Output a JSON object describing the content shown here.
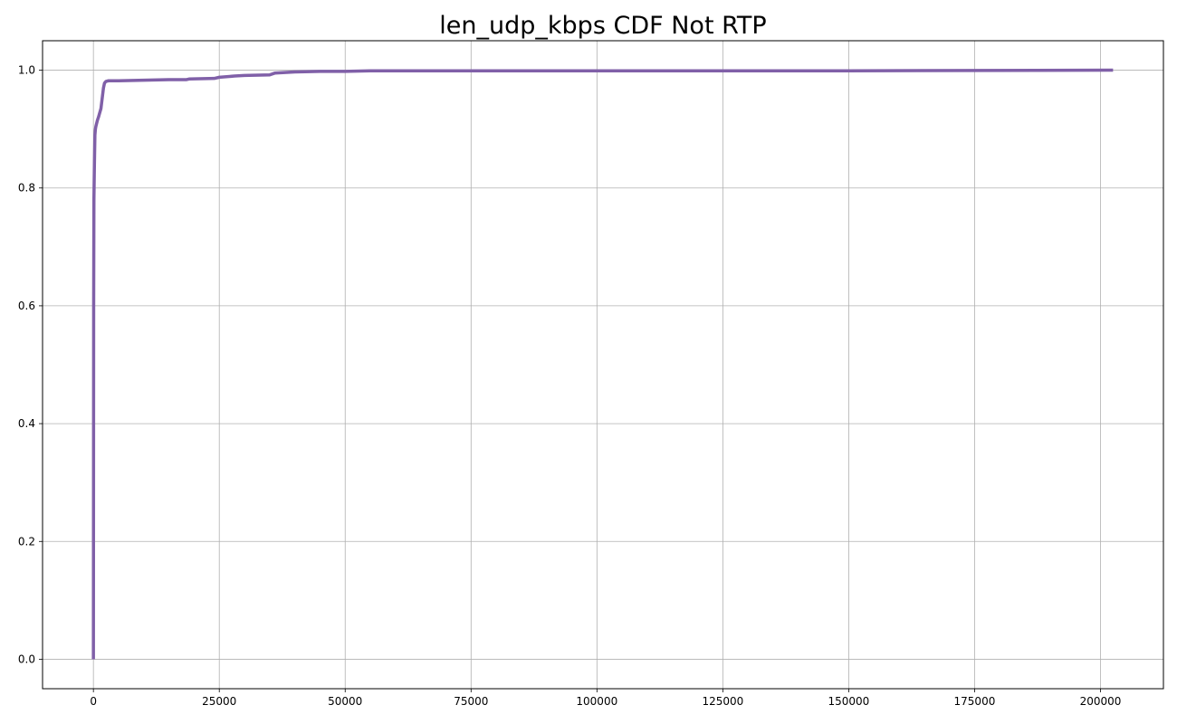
{
  "chart_data": {
    "type": "line",
    "title": "len_udp_kbps CDF Not RTP",
    "xlabel": "",
    "ylabel": "",
    "xlim": [
      -10100,
      212500
    ],
    "ylim": [
      -0.05,
      1.05
    ],
    "xticks": [
      0,
      25000,
      50000,
      75000,
      100000,
      125000,
      150000,
      175000,
      200000
    ],
    "yticks": [
      0.0,
      0.2,
      0.4,
      0.6,
      0.8,
      1.0
    ],
    "xtick_labels": [
      "0",
      "25000",
      "50000",
      "75000",
      "100000",
      "125000",
      "150000",
      "175000",
      "200000"
    ],
    "ytick_labels": [
      "0.0",
      "0.2",
      "0.4",
      "0.6",
      "0.8",
      "1.0"
    ],
    "grid": true,
    "legend": "none",
    "series": [
      {
        "color": "#8060a8",
        "x": [
          0,
          50,
          100,
          200,
          300,
          400,
          500,
          800,
          1000,
          1500,
          2000,
          2200,
          2500,
          3000,
          5000,
          10000,
          15000,
          18500,
          19000,
          24000,
          25000,
          28000,
          30000,
          35000,
          36000,
          40000,
          45000,
          50000,
          55000,
          60000,
          100000,
          150000,
          202500
        ],
        "y": [
          0.0,
          0.6,
          0.78,
          0.84,
          0.89,
          0.9,
          0.905,
          0.915,
          0.92,
          0.935,
          0.97,
          0.978,
          0.981,
          0.982,
          0.982,
          0.983,
          0.984,
          0.984,
          0.985,
          0.986,
          0.988,
          0.99,
          0.991,
          0.992,
          0.995,
          0.997,
          0.998,
          0.998,
          0.999,
          0.999,
          0.999,
          0.999,
          1.0
        ]
      }
    ]
  }
}
